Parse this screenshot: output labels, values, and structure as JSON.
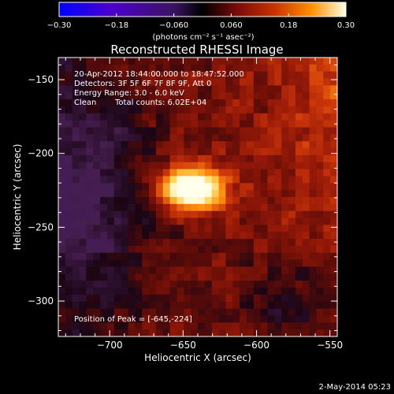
{
  "chart_data": {
    "type": "heatmap",
    "title": "Reconstructed RHESSI Image",
    "xlabel": "Heliocentric X (arcsec)",
    "ylabel": "Heliocentric Y (arcsec)",
    "xlim": [
      -735,
      -545
    ],
    "ylim": [
      -324,
      -135
    ],
    "x_ticks": [
      -700,
      -650,
      -600,
      -550
    ],
    "x_tick_labels": [
      "−700",
      "−650",
      "−600",
      "−550"
    ],
    "y_ticks": [
      -150,
      -200,
      -250,
      -300
    ],
    "y_tick_labels": [
      "−150",
      "−200",
      "−250",
      "−300"
    ],
    "colorbar": {
      "min": -0.3,
      "max": 0.3,
      "ticks": [
        -0.3,
        -0.18,
        -0.06,
        0.06,
        0.18,
        0.3
      ],
      "tick_labels": [
        "−0.30",
        "−0.18",
        "−0.060",
        "0.060",
        "0.18",
        "0.30"
      ],
      "units_label": "(photons cm⁻² s⁻¹ asec⁻²)",
      "colors": [
        "#0000ff",
        "#4b00cc",
        "#5a1a8a",
        "#000000",
        "#6a0a0a",
        "#b01e00",
        "#ff5a00",
        "#ffb400",
        "#ffffe6"
      ]
    },
    "annotations": [
      "20-Apr-2012 18:44:00.000 to 18:47:52.000",
      "Detectors: 3F 5F 6F 7F 8F 9F, Att 0",
      "Energy Range: 3.0 - 6.0 keV",
      "Clean",
      "Total counts: 6.02E+04",
      "Position of Peak = [-645,-224]"
    ],
    "peak": {
      "x": -645,
      "y": -224
    },
    "timestamp": "2-May-2014 05:23"
  }
}
